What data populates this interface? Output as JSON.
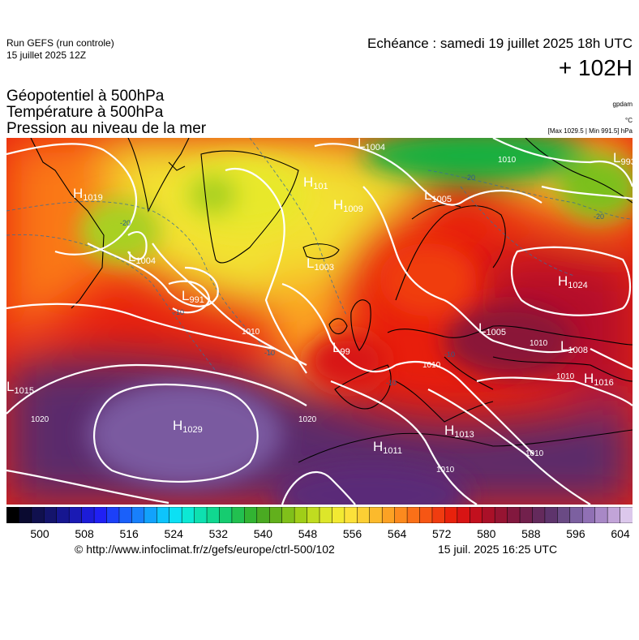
{
  "header": {
    "run_name": "Run GEFS (run controle)",
    "run_date": "15 juillet 2025 12Z",
    "echeance": "Echéance : samedi 19 juillet 2025 18h UTC",
    "lead": "+ 102H"
  },
  "fields": [
    "Géopotentiel à 500hPa",
    "Température à 500hPa",
    "Pression au niveau de la mer"
  ],
  "units": {
    "geopotential": "gpdam",
    "temperature": "°C",
    "pressure": "[Max 1029.5 | Min 991.5] hPa"
  },
  "pressure_systems": [
    {
      "type": "L",
      "value": "1004",
      "name": "low-1004-north"
    },
    {
      "type": "H",
      "value": "1019",
      "name": "high-1019-canada"
    },
    {
      "type": "H",
      "value": "101",
      "name": "high-101-greenland"
    },
    {
      "type": "H",
      "value": "1009",
      "name": "high-1009-iceland"
    },
    {
      "type": "L",
      "value": "1005",
      "name": "low-1005-norway"
    },
    {
      "type": "L",
      "value": "993",
      "name": "low-993-arctic"
    },
    {
      "type": "L",
      "value": "1004",
      "name": "low-1004-labrador"
    },
    {
      "type": "L",
      "value": "991",
      "name": "low-991-atlantic"
    },
    {
      "type": "L",
      "value": "1003",
      "name": "low-1003-atlantic"
    },
    {
      "type": "H",
      "value": "1024",
      "name": "high-1024-russia"
    },
    {
      "type": "L",
      "value": "1005",
      "name": "low-1005-poland"
    },
    {
      "type": "L",
      "value": "1008",
      "name": "low-1008-ukraine"
    },
    {
      "type": "L",
      "value": "99",
      "name": "low-99-ireland"
    },
    {
      "type": "H",
      "value": "1016",
      "name": "high-1016-blacksea"
    },
    {
      "type": "L",
      "value": "1015",
      "name": "low-1015-west"
    },
    {
      "type": "H",
      "value": "1029",
      "name": "high-1029-azores"
    },
    {
      "type": "H",
      "value": "1011",
      "name": "high-1011-iberia"
    },
    {
      "type": "H",
      "value": "1013",
      "name": "high-1013-mediterranean"
    }
  ],
  "isobar_labels": [
    "1010",
    "1010",
    "1010",
    "1010",
    "1010",
    "1010",
    "1010",
    "1020",
    "1020",
    "1020",
    "1010",
    "1004",
    "101"
  ],
  "isotherm_labels": [
    "-20",
    "-20",
    "-20",
    "-15",
    "-10",
    "-10",
    "-10",
    "-10"
  ],
  "colorbar": {
    "colors": [
      "#000000",
      "#0a0a30",
      "#10104e",
      "#14146c",
      "#161690",
      "#1a1ab4",
      "#1c1cd8",
      "#2020f4",
      "#1c40f8",
      "#1a60fa",
      "#1880fc",
      "#12a2fc",
      "#0ec4fc",
      "#0ce0f4",
      "#0ce8d4",
      "#0ee0b0",
      "#10d890",
      "#16cc70",
      "#22c050",
      "#32b432",
      "#4aaa22",
      "#62b01c",
      "#80c01a",
      "#a0ce18",
      "#c0dc20",
      "#dde62a",
      "#f2ea32",
      "#fce13a",
      "#fccf34",
      "#fcba2c",
      "#fca224",
      "#fc8a1e",
      "#fa7018",
      "#f65614",
      "#f03c10",
      "#e8220c",
      "#d81414",
      "#c2101e",
      "#aa1028",
      "#961432",
      "#82183e",
      "#72204c",
      "#642a5c",
      "#5e346c",
      "#6a4a84",
      "#7c60a0",
      "#9070b4",
      "#a888c6",
      "#c2a4d8",
      "#dcc8ec"
    ],
    "tick_labels": [
      "500",
      "508",
      "516",
      "524",
      "532",
      "540",
      "548",
      "556",
      "564",
      "572",
      "580",
      "588",
      "596",
      "604"
    ]
  },
  "footer": {
    "credit": "© http://www.infoclimat.fr/z/gefs/europe/ctrl-500/102",
    "generated": "15 juil. 2025 16:25 UTC"
  }
}
